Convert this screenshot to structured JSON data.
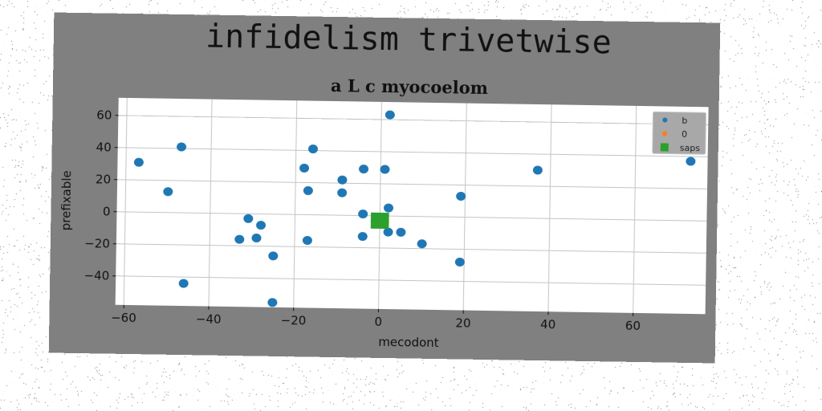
{
  "figure_title": "infidelism trivetwise",
  "chart_data": {
    "type": "scatter",
    "title": "a L c myocoelom",
    "xlabel": "mecodont",
    "ylabel": "prefixable",
    "xlim": [
      -62,
      77
    ],
    "ylim": [
      -58,
      71
    ],
    "xticks": [
      -60,
      -40,
      -20,
      0,
      20,
      40,
      60
    ],
    "yticks": [
      -40,
      -20,
      0,
      20,
      40,
      60
    ],
    "xtick_labels": [
      "−60",
      "−40",
      "−20",
      "0",
      "20",
      "40",
      "60"
    ],
    "ytick_labels": [
      "−40",
      "−20",
      "0",
      "20",
      "40",
      "60"
    ],
    "grid": true,
    "legend_position": "top-right",
    "series": [
      {
        "name": "b",
        "color": "#1f77b4",
        "marker": "circle",
        "points": [
          [
            2,
            63
          ],
          [
            -47,
            41
          ],
          [
            -16,
            41
          ],
          [
            -57,
            31
          ],
          [
            -18,
            29
          ],
          [
            -4,
            29
          ],
          [
            1,
            29
          ],
          [
            37,
            30
          ],
          [
            73,
            37
          ],
          [
            -9,
            22
          ],
          [
            -17,
            15
          ],
          [
            -9,
            14
          ],
          [
            -50,
            13
          ],
          [
            19,
            13
          ],
          [
            -4,
            1
          ],
          [
            2,
            5
          ],
          [
            -31,
            -3
          ],
          [
            -28,
            -7
          ],
          [
            2,
            -10
          ],
          [
            5,
            -10
          ],
          [
            -33,
            -16
          ],
          [
            -29,
            -15
          ],
          [
            -17,
            -16
          ],
          [
            -4,
            -13
          ],
          [
            10,
            -17
          ],
          [
            -25,
            -26
          ],
          [
            19,
            -28
          ],
          [
            -46,
            -44
          ],
          [
            -25,
            -55
          ]
        ]
      },
      {
        "name": "0",
        "color": "#ff7f0e",
        "marker": "circle",
        "points": []
      },
      {
        "name": "saps",
        "color": "#2ca02c",
        "marker": "square",
        "points": [
          [
            -1,
            -1
          ],
          [
            1,
            -1
          ],
          [
            -1,
            -5
          ],
          [
            1,
            -5
          ]
        ]
      }
    ]
  }
}
